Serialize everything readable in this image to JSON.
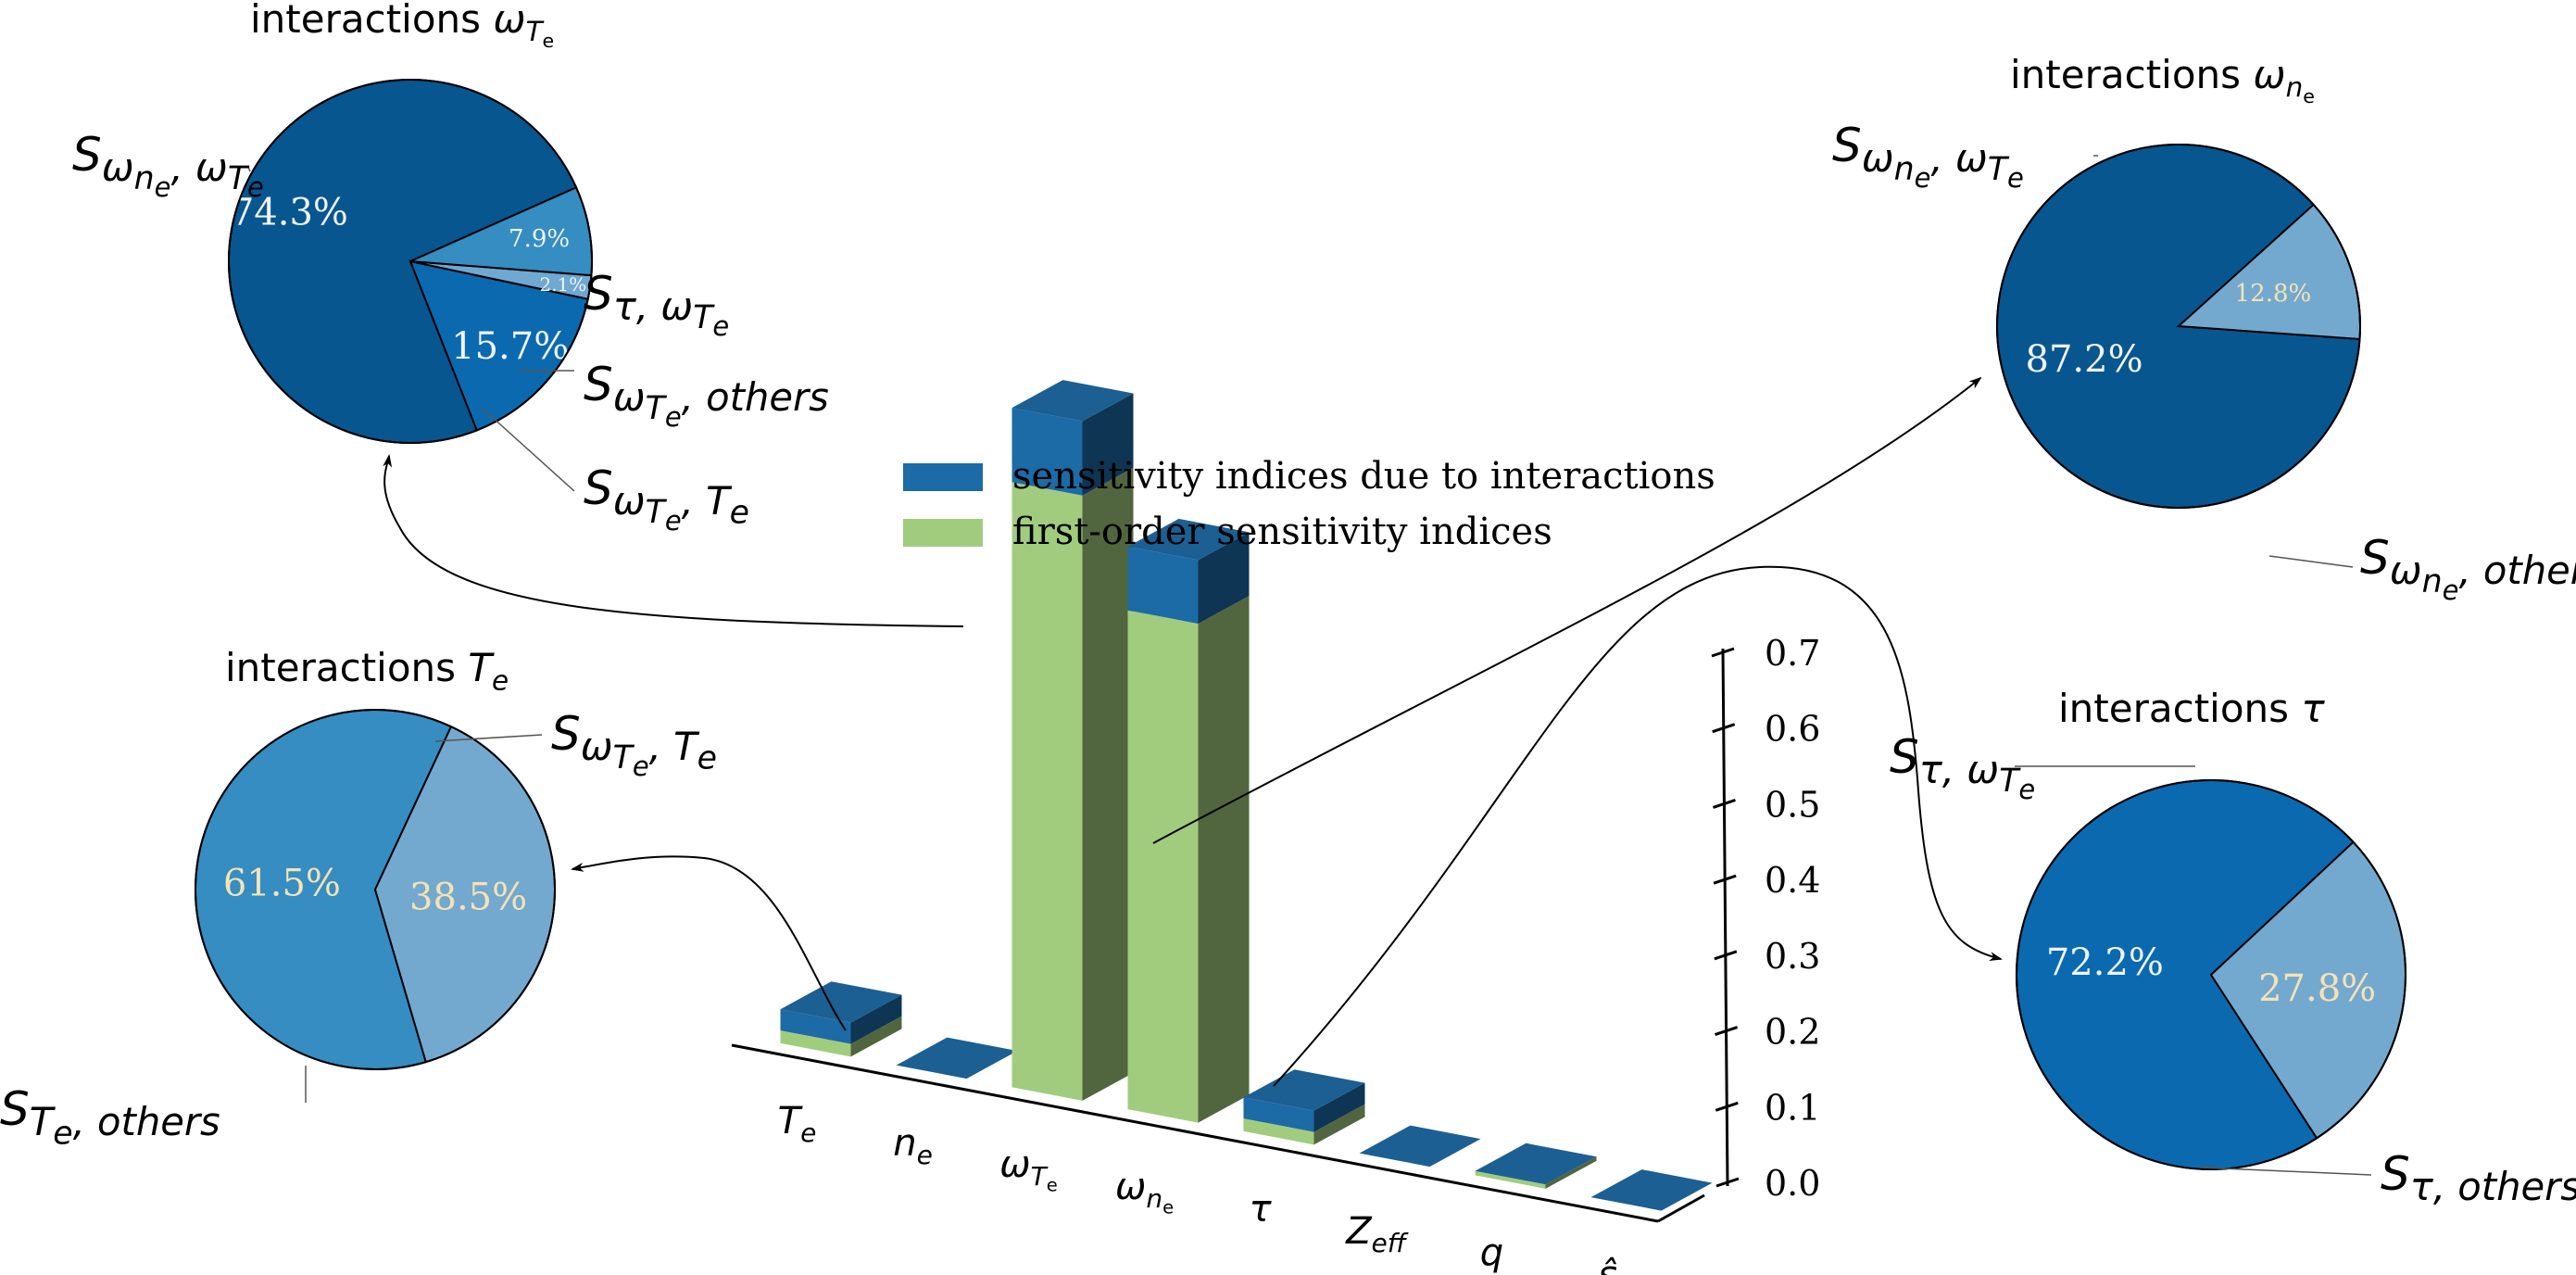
{
  "chart_data": [
    {
      "type": "bar",
      "subtype": "3d-stacked-bar",
      "categories": [
        {
          "base": "T",
          "sub": "e"
        },
        {
          "base": "n",
          "sub": "e"
        },
        {
          "base": "ω",
          "sub": "T",
          "subsub": "e"
        },
        {
          "base": "ω",
          "sub": "n",
          "subsub": "e"
        },
        {
          "base": "τ"
        },
        {
          "base": "Z",
          "sub": "eff"
        },
        {
          "base": "q"
        },
        {
          "base": "ŝ"
        }
      ],
      "series": [
        {
          "name": "first-order sensitivity indices",
          "color": "#a1cc7e",
          "values": [
            0.012,
            0.0,
            0.57,
            0.47,
            0.012,
            0.0,
            0.004,
            0.0
          ]
        },
        {
          "name": "sensitivity indices due to interactions",
          "color": "#1c6aa6",
          "values": [
            0.02,
            0.0,
            0.07,
            0.06,
            0.02,
            0.0,
            0.0,
            0.0
          ]
        }
      ],
      "zticks": [
        "0.0",
        "0.1",
        "0.2",
        "0.3",
        "0.4",
        "0.5",
        "0.6",
        "0.7"
      ],
      "zlim": [
        0,
        0.7
      ],
      "legend_position": "top-center"
    },
    {
      "type": "pie",
      "title": {
        "prefix": "interactions ",
        "base": "ω",
        "sub": "T",
        "subsub": "e"
      },
      "slices": [
        {
          "value": 74.3,
          "label": "74.3%",
          "color": "#08568f",
          "name_html": "S<sub>ω<sub>n<sub>e</sub></sub>, ω<sub>T<sub>e</sub></sub></sub>"
        },
        {
          "value": 15.7,
          "label": "15.7%",
          "color": "#0b6aaf",
          "name_html": "S<sub>τ, ω<sub>T<sub>e</sub></sub></sub>"
        },
        {
          "value": 2.1,
          "label": "2.1%",
          "color": "#6fa8d1",
          "name_html": "S<sub>ω<sub>T<sub>e</sub></sub>, others</sub>"
        },
        {
          "value": 7.9,
          "label": "7.9%",
          "color": "#358dc2",
          "name_html": "S<sub>ω<sub>T<sub>e</sub></sub>, T<sub>e</sub></sub>"
        }
      ]
    },
    {
      "type": "pie",
      "title": {
        "prefix": "interactions ",
        "base": "ω",
        "sub": "n",
        "subsub": "e"
      },
      "slices": [
        {
          "value": 87.2,
          "label": "87.2%",
          "color": "#08568f",
          "name_html": "S<sub>ω<sub>n<sub>e</sub></sub>, ω<sub>T<sub>e</sub></sub></sub>"
        },
        {
          "value": 12.8,
          "label": "12.8%",
          "color": "#74a9cf",
          "name_html": "S<sub>ω<sub>n<sub>e</sub></sub>, others</sub>"
        }
      ]
    },
    {
      "type": "pie",
      "title": {
        "prefix": "interactions ",
        "base": "T",
        "sub": "e"
      },
      "slices": [
        {
          "value": 61.5,
          "label": "61.5%",
          "color": "#358dc2",
          "name_html": "S<sub>ω<sub>T<sub>e</sub></sub>, T<sub>e</sub></sub>"
        },
        {
          "value": 38.5,
          "label": "38.5%",
          "color": "#74a9cf",
          "name_html": "S<sub>T<sub>e</sub>, others</sub>"
        }
      ]
    },
    {
      "type": "pie",
      "title": {
        "prefix": "interactions ",
        "base": "τ"
      },
      "slices": [
        {
          "value": 72.2,
          "label": "72.2%",
          "color": "#0b6aaf",
          "name_html": "S<sub>τ, ω<sub>T<sub>e</sub></sub></sub>"
        },
        {
          "value": 27.8,
          "label": "27.8%",
          "color": "#74a9cf",
          "name_html": "S<sub>τ, others</sub>"
        }
      ]
    }
  ]
}
